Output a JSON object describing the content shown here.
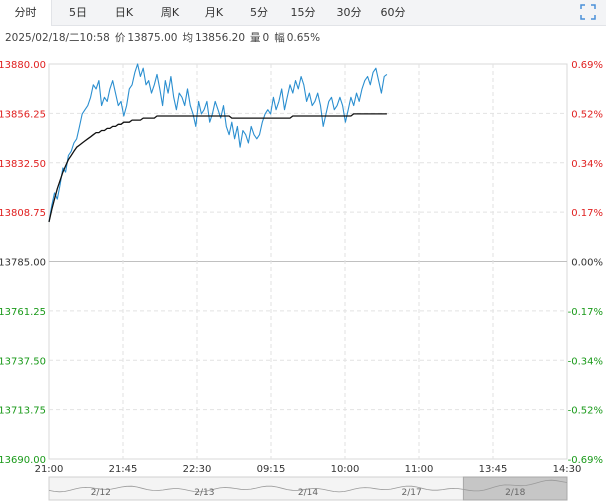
{
  "tabs": [
    "分时",
    "5日",
    "日K",
    "周K",
    "月K",
    "5分",
    "15分",
    "30分",
    "60分"
  ],
  "active_tab": 0,
  "expand_icon": "fullscreen-icon",
  "info": {
    "datetime": "2025/02/18/二10:58",
    "price_label": "价",
    "price": "13875.00",
    "avg_label": "均",
    "avg": "13856.20",
    "vol_label": "量",
    "vol": "0",
    "change_label": "幅",
    "change": "0.65%"
  },
  "colors": {
    "up": "#e02020",
    "down": "#1a9a1a",
    "flat": "#333333",
    "price_line": "#2b8fd0",
    "avg_line": "#111111"
  },
  "chart_data": {
    "type": "line",
    "title": "",
    "xlabel": "",
    "ylabel": "",
    "ylim": [
      13690.0,
      13880.0
    ],
    "prev_close": 13785.0,
    "y_ticks": [
      "13880.00",
      "13856.25",
      "13832.50",
      "13808.75",
      "13785.00",
      "13761.25",
      "13737.50",
      "13713.75",
      "13690.00"
    ],
    "pct_ticks": [
      "0.69%",
      "0.52%",
      "0.34%",
      "0.17%",
      "0.00%",
      "-0.17%",
      "-0.34%",
      "-0.52%",
      "-0.69%"
    ],
    "x_ticks": [
      "21:00",
      "21:45",
      "22:30",
      "09:15",
      "10:00",
      "11:00",
      "13:45",
      "14:30"
    ],
    "series": [
      {
        "values": [
          13804,
          13812,
          13818,
          13815,
          13822,
          13830,
          13828,
          13836,
          13838,
          13842,
          13844,
          13850,
          13856,
          13858,
          13860,
          13864,
          13870,
          13868,
          13872,
          13860,
          13864,
          13862,
          13868,
          13872,
          13866,
          13860,
          13862,
          13855,
          13860,
          13868,
          13870,
          13876,
          13880,
          13874,
          13878,
          13870,
          13872,
          13866,
          13870,
          13875,
          13868,
          13860,
          13872,
          13866,
          13874,
          13864,
          13858,
          13866,
          13864,
          13860,
          13868,
          13860,
          13856,
          13850,
          13862,
          13856,
          13858,
          13862,
          13852,
          13856,
          13862,
          13858,
          13854,
          13860,
          13850,
          13846,
          13852,
          13844,
          13850,
          13840,
          13848,
          13846,
          13842,
          13850,
          13846,
          13844,
          13846,
          13852,
          13856,
          13858,
          13856,
          13864,
          13858,
          13862,
          13868,
          13858,
          13864,
          13870,
          13866,
          13872,
          13868,
          13874,
          13870,
          13862,
          13866,
          13860,
          13862,
          13866,
          13860,
          13850,
          13856,
          13862,
          13864,
          13858,
          13860,
          13864,
          13860,
          13852,
          13858,
          13864,
          13860,
          13866,
          13862,
          13868,
          13872,
          13874,
          13870,
          13876,
          13878,
          13872,
          13866,
          13874,
          13875
        ]
      },
      {
        "values": [
          13804,
          13810,
          13815,
          13820,
          13824,
          13828,
          13831,
          13834,
          13836,
          13838,
          13840,
          13841,
          13842,
          13843,
          13844,
          13845,
          13846,
          13847,
          13847,
          13848,
          13848,
          13849,
          13849,
          13850,
          13850,
          13851,
          13851,
          13852,
          13852,
          13852,
          13853,
          13853,
          13853,
          13853,
          13854,
          13854,
          13854,
          13854,
          13854,
          13855,
          13855,
          13855,
          13855,
          13855,
          13855,
          13855,
          13855,
          13855,
          13855,
          13855,
          13855,
          13855,
          13855,
          13855,
          13855,
          13855,
          13855,
          13855,
          13855,
          13855,
          13855,
          13855,
          13855,
          13855,
          13855,
          13855,
          13854,
          13854,
          13854,
          13854,
          13854,
          13854,
          13854,
          13854,
          13854,
          13854,
          13854,
          13854,
          13854,
          13854,
          13854,
          13854,
          13854,
          13854,
          13854,
          13854,
          13854,
          13854,
          13855,
          13855,
          13855,
          13855,
          13855,
          13855,
          13855,
          13855,
          13855,
          13855,
          13855,
          13855,
          13855,
          13855,
          13855,
          13855,
          13855,
          13855,
          13855,
          13855,
          13855,
          13855,
          13856,
          13856,
          13856,
          13856,
          13856,
          13856,
          13856,
          13856,
          13856,
          13856,
          13856,
          13856,
          13856
        ]
      }
    ],
    "total_slots": 188,
    "navigator_labels": [
      "2/12",
      "2/13",
      "2/14",
      "2/17",
      "2/18"
    ],
    "navigator_selected": 4
  }
}
